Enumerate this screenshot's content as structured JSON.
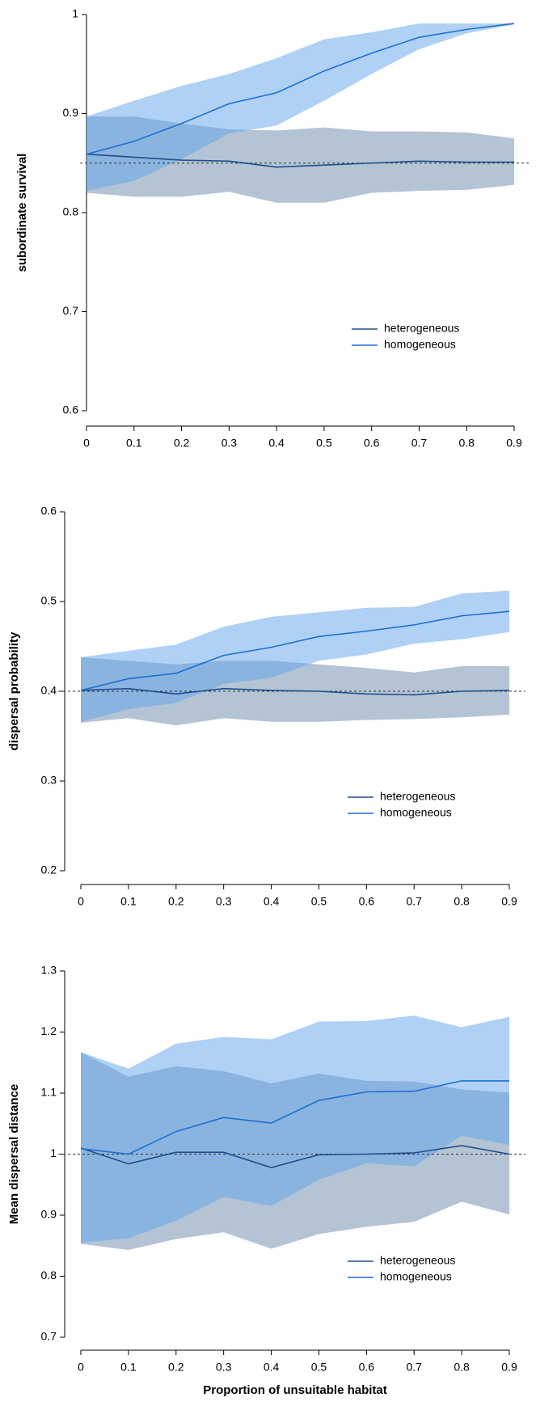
{
  "chart_data": [
    {
      "type": "line",
      "ylabel": "subordinate survival",
      "xlim": [
        0,
        0.9
      ],
      "ylim": [
        0.6,
        1
      ],
      "xticks": [
        0,
        0.1,
        0.2,
        0.3,
        0.4,
        0.5,
        0.6,
        0.7,
        0.8,
        0.9
      ],
      "yticks": [
        0.6,
        0.7,
        0.8,
        0.9,
        1
      ],
      "reference_line": 0.85,
      "legend": "lower right",
      "x": [
        0,
        0.1,
        0.2,
        0.3,
        0.4,
        0.5,
        0.6,
        0.7,
        0.8,
        0.9
      ],
      "series": [
        {
          "name": "heterogeneous",
          "color": "#1f4e8c",
          "band_color": "#6a8aac",
          "values": [
            0.859,
            0.856,
            0.853,
            0.852,
            0.846,
            0.848,
            0.85,
            0.852,
            0.851,
            0.851
          ],
          "upper": [
            0.897,
            0.897,
            0.89,
            0.884,
            0.883,
            0.886,
            0.882,
            0.882,
            0.881,
            0.875
          ],
          "lower": [
            0.82,
            0.816,
            0.816,
            0.821,
            0.81,
            0.81,
            0.82,
            0.822,
            0.823,
            0.828
          ]
        },
        {
          "name": "homogeneous",
          "color": "#1f6fd0",
          "band_color": "#5fa3ec",
          "values": [
            0.859,
            0.872,
            0.89,
            0.91,
            0.921,
            0.943,
            0.961,
            0.977,
            0.985,
            0.991
          ],
          "upper": [
            0.897,
            0.913,
            0.928,
            0.94,
            0.956,
            0.975,
            0.982,
            0.991,
            0.991,
            0.991
          ],
          "lower": [
            0.822,
            0.832,
            0.854,
            0.88,
            0.888,
            0.913,
            0.94,
            0.965,
            0.981,
            0.99
          ]
        }
      ]
    },
    {
      "type": "line",
      "ylabel": "dispersal probability",
      "xlim": [
        0,
        0.9
      ],
      "ylim": [
        0.2,
        0.6
      ],
      "xticks": [
        0,
        0.1,
        0.2,
        0.3,
        0.4,
        0.5,
        0.6,
        0.7,
        0.8,
        0.9
      ],
      "yticks": [
        0.2,
        0.3,
        0.4,
        0.5,
        0.6
      ],
      "reference_line": 0.4,
      "legend": "lower right",
      "x": [
        0,
        0.1,
        0.2,
        0.3,
        0.4,
        0.5,
        0.6,
        0.7,
        0.8,
        0.9
      ],
      "series": [
        {
          "name": "heterogeneous",
          "color": "#1f4e8c",
          "band_color": "#6a8aac",
          "values": [
            0.401,
            0.403,
            0.397,
            0.403,
            0.401,
            0.4,
            0.397,
            0.396,
            0.4,
            0.401
          ],
          "upper": [
            0.438,
            0.434,
            0.43,
            0.434,
            0.434,
            0.43,
            0.426,
            0.421,
            0.428,
            0.428
          ],
          "lower": [
            0.365,
            0.37,
            0.362,
            0.37,
            0.366,
            0.366,
            0.368,
            0.369,
            0.371,
            0.374
          ]
        },
        {
          "name": "homogeneous",
          "color": "#1f6fd0",
          "band_color": "#5fa3ec",
          "values": [
            0.401,
            0.414,
            0.42,
            0.44,
            0.449,
            0.461,
            0.467,
            0.474,
            0.484,
            0.489
          ],
          "upper": [
            0.438,
            0.445,
            0.452,
            0.472,
            0.483,
            0.488,
            0.493,
            0.494,
            0.509,
            0.512
          ],
          "lower": [
            0.366,
            0.38,
            0.387,
            0.408,
            0.415,
            0.434,
            0.441,
            0.453,
            0.458,
            0.466
          ]
        }
      ]
    },
    {
      "type": "line",
      "ylabel": "Mean dispersal distance",
      "xlabel": "Proportion of unsuitable habitat",
      "xlim": [
        0,
        0.9
      ],
      "ylim": [
        0.7,
        1.3
      ],
      "xticks": [
        0,
        0.1,
        0.2,
        0.3,
        0.4,
        0.5,
        0.6,
        0.7,
        0.8,
        0.9
      ],
      "yticks": [
        0.7,
        0.8,
        0.9,
        1,
        1.1,
        1.2,
        1.3
      ],
      "reference_line": 1,
      "legend": "lower right",
      "x": [
        0,
        0.1,
        0.2,
        0.3,
        0.4,
        0.5,
        0.6,
        0.7,
        0.8,
        0.9
      ],
      "series": [
        {
          "name": "heterogeneous",
          "color": "#1f4e8c",
          "band_color": "#6a8aac",
          "values": [
            1.01,
            0.984,
            1.003,
            1.003,
            0.978,
            0.999,
            1.0,
            1.002,
            1.014,
            1.0
          ],
          "upper": [
            1.167,
            1.127,
            1.144,
            1.136,
            1.116,
            1.132,
            1.12,
            1.119,
            1.106,
            1.101
          ],
          "lower": [
            0.853,
            0.843,
            0.861,
            0.872,
            0.845,
            0.869,
            0.881,
            0.889,
            0.922,
            0.901
          ]
        },
        {
          "name": "homogeneous",
          "color": "#1f6fd0",
          "band_color": "#5fa3ec",
          "values": [
            1.009,
            1.0,
            1.037,
            1.06,
            1.051,
            1.088,
            1.102,
            1.103,
            1.12,
            1.12
          ],
          "upper": [
            1.167,
            1.14,
            1.181,
            1.192,
            1.188,
            1.217,
            1.218,
            1.227,
            1.208,
            1.225
          ],
          "lower": [
            0.855,
            0.862,
            0.891,
            0.93,
            0.915,
            0.958,
            0.985,
            0.98,
            1.03,
            1.015
          ]
        }
      ]
    }
  ]
}
